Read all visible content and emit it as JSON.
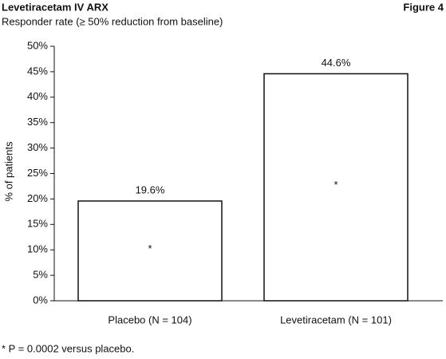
{
  "chart_data": {
    "type": "bar",
    "title": "Levetiracetam IV ARX",
    "figure_label": "Figure 4",
    "subtitle": "Responder rate (≥ 50% reduction from baseline)",
    "y_label": "% of patients",
    "categories": [
      "Placebo (N = 104)",
      "Levetiracetam (N = 101)"
    ],
    "values": [
      19.6,
      44.6
    ],
    "value_labels": [
      "19.6%",
      "44.6%"
    ],
    "bar_annotations": [
      "*",
      "*"
    ],
    "footnote": "* P = 0.0002 versus placebo.",
    "color": "#ffffff",
    "ylim": [
      0,
      50
    ],
    "yticks": [
      {
        "value": 0,
        "label": "0%"
      },
      {
        "value": 5,
        "label": "5%"
      },
      {
        "value": 10,
        "label": "10%"
      },
      {
        "value": 15,
        "label": "15%"
      },
      {
        "value": 20,
        "label": "20%"
      },
      {
        "value": 25,
        "label": "25%"
      },
      {
        "value": 30,
        "label": "30%"
      },
      {
        "value": 35,
        "label": "35%"
      },
      {
        "value": 40,
        "label": "40%"
      },
      {
        "value": 45,
        "label": "45%"
      },
      {
        "value": 50,
        "label": "50%"
      }
    ],
    "grid": false
  }
}
